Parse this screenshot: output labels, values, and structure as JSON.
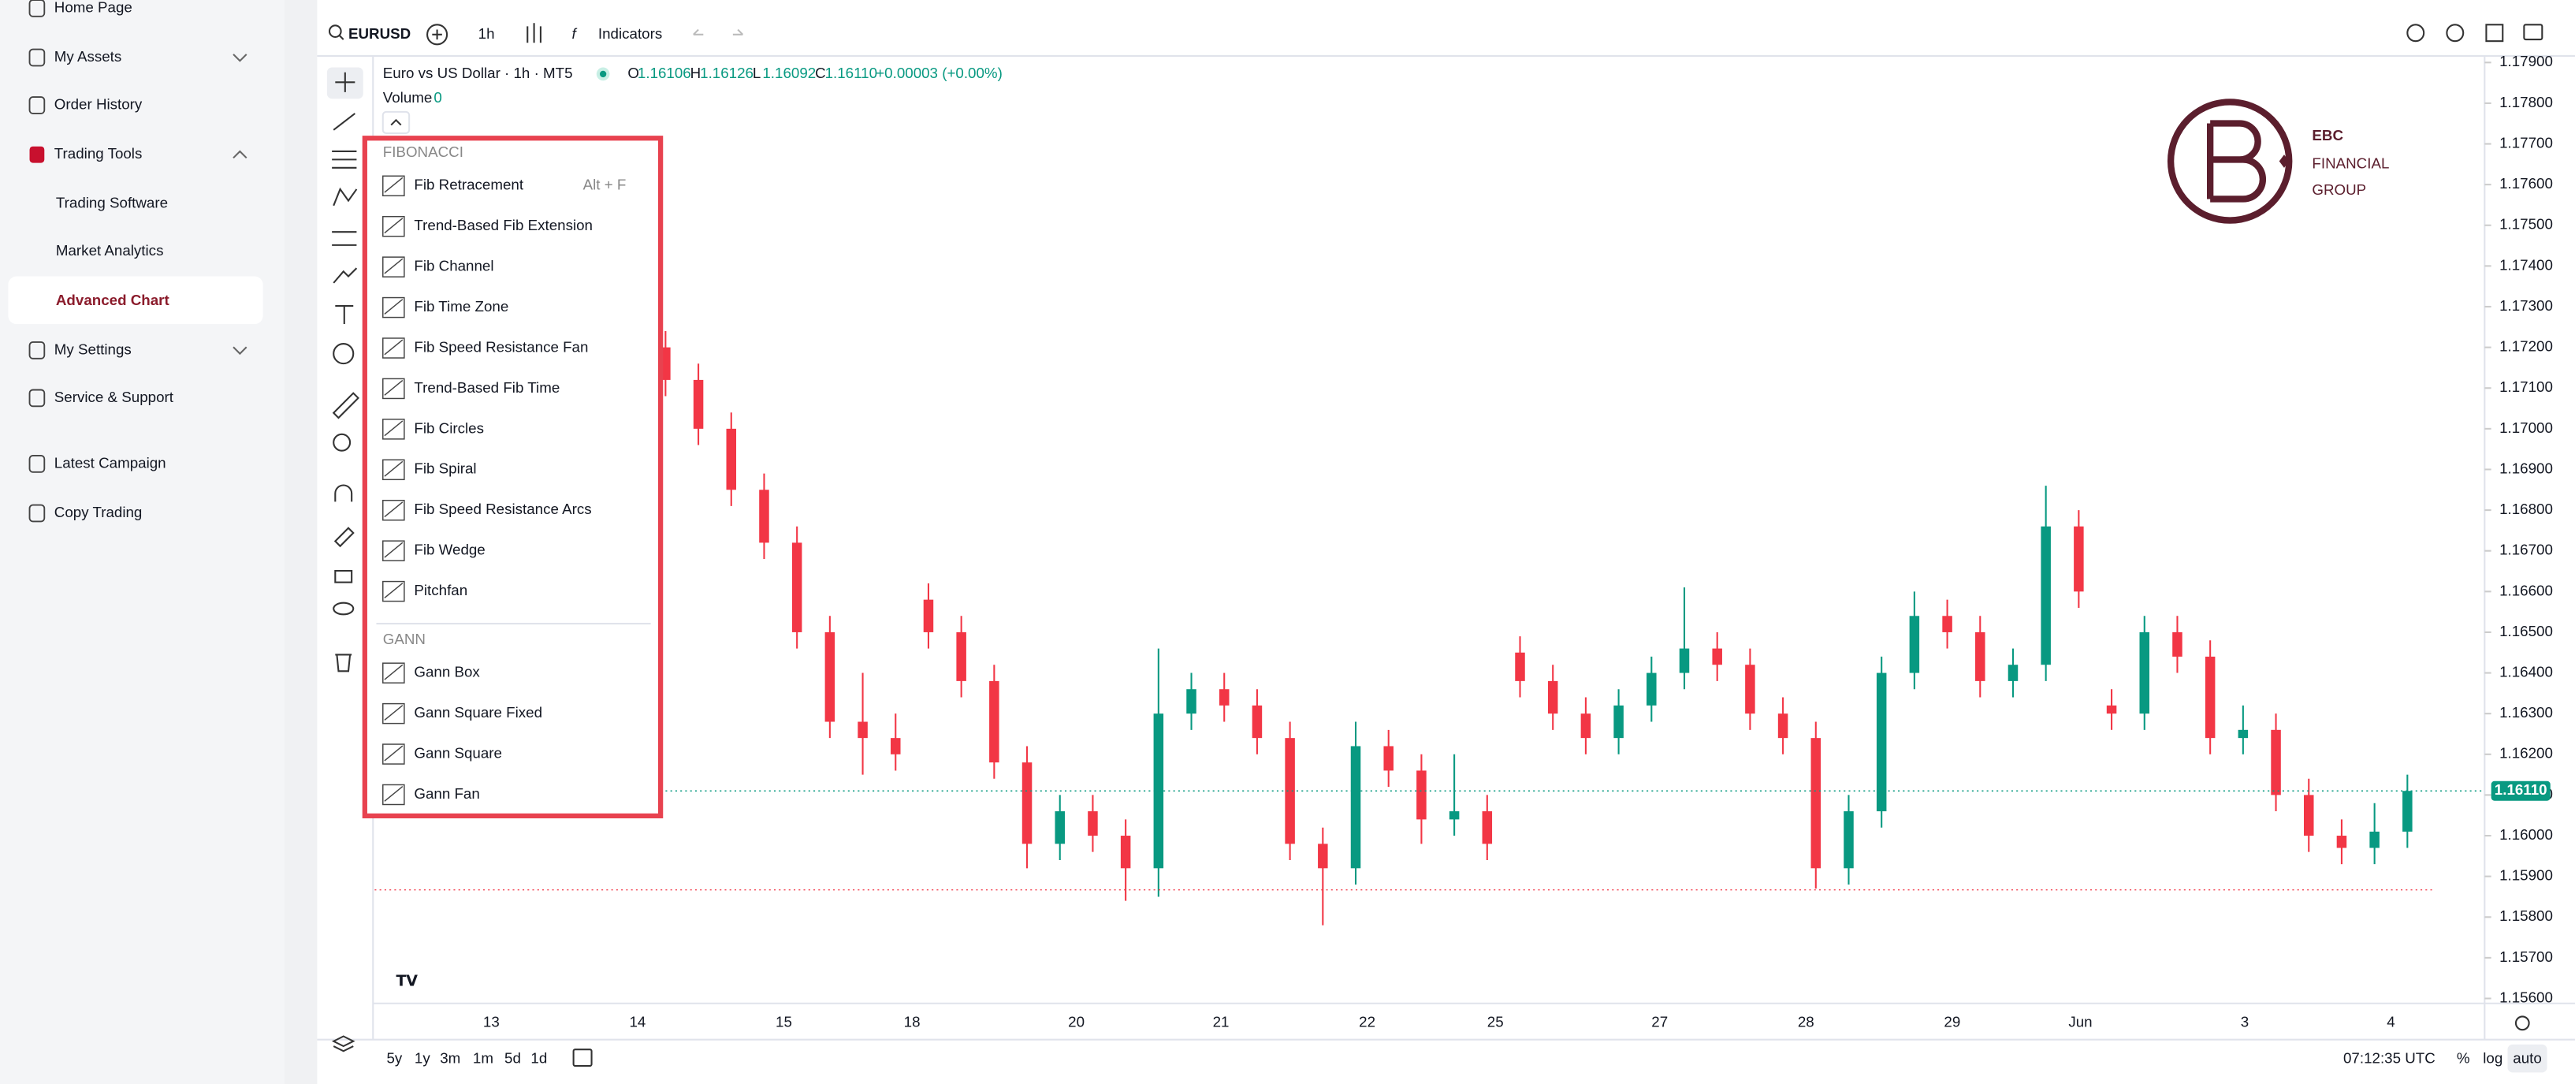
{
  "sidebar": {
    "items": [
      "Home Page",
      "My Assets",
      "Order History",
      "Trading Tools",
      "Trading Software",
      "Market Analytics",
      "Advanced Chart",
      "My Settings",
      "Service & Support",
      "Latest Campaign",
      "Copy Trading"
    ]
  },
  "toolbar": {
    "symbol": "EURUSD",
    "interval": "1h",
    "indicators": "Indicators"
  },
  "legend": {
    "title": "Euro vs US Dollar · 1h · MT5",
    "ohlc": [
      {
        "key": "O",
        "value": "1.16106"
      },
      {
        "key": "H",
        "value": "1.16126"
      },
      {
        "key": "L",
        "value": "1.16092"
      },
      {
        "key": "C",
        "value": "1.16110"
      }
    ],
    "change": "+0.00003 (+0.00%)",
    "volume_label": "Volume",
    "volume_value": "0"
  },
  "tools_menu": {
    "sections": [
      {
        "title": "FIBONACCI",
        "items": [
          {
            "label": "Fib Retracement",
            "shortcut": "Alt + F"
          },
          {
            "label": "Trend-Based Fib Extension"
          },
          {
            "label": "Fib Channel"
          },
          {
            "label": "Fib Time Zone"
          },
          {
            "label": "Fib Speed Resistance Fan"
          },
          {
            "label": "Trend-Based Fib Time"
          },
          {
            "label": "Fib Circles"
          },
          {
            "label": "Fib Spiral"
          },
          {
            "label": "Fib Speed Resistance Arcs"
          },
          {
            "label": "Fib Wedge"
          },
          {
            "label": "Pitchfan"
          }
        ]
      },
      {
        "title": "GANN",
        "items": [
          {
            "label": "Gann Box"
          },
          {
            "label": "Gann Square Fixed"
          },
          {
            "label": "Gann Square"
          },
          {
            "label": "Gann Fan"
          }
        ]
      }
    ]
  },
  "logo": {
    "lines": [
      "EBC",
      "FINANCIAL",
      "GROUP"
    ]
  },
  "chart_data": {
    "type": "candlestick",
    "colors": {
      "up": "#089981",
      "down": "#f23645"
    },
    "candles": [
      [
        1.172,
        1.1724,
        1.1708,
        1.1712
      ],
      [
        1.1712,
        1.1716,
        1.1696,
        1.17
      ],
      [
        1.17,
        1.1704,
        1.1681,
        1.1685
      ],
      [
        1.1685,
        1.1689,
        1.1668,
        1.1672
      ],
      [
        1.1672,
        1.1676,
        1.1646,
        1.165
      ],
      [
        1.165,
        1.1654,
        1.1624,
        1.1628
      ],
      [
        1.1628,
        1.164,
        1.1615,
        1.1624
      ],
      [
        1.1624,
        1.163,
        1.1616,
        1.162
      ],
      [
        1.1658,
        1.1662,
        1.1646,
        1.165
      ],
      [
        1.165,
        1.1654,
        1.1634,
        1.1638
      ],
      [
        1.1638,
        1.1642,
        1.1614,
        1.1618
      ],
      [
        1.1618,
        1.1622,
        1.1592,
        1.1598
      ],
      [
        1.1598,
        1.161,
        1.1594,
        1.1606
      ],
      [
        1.1606,
        1.161,
        1.1596,
        1.16
      ],
      [
        1.16,
        1.1604,
        1.1584,
        1.1592
      ],
      [
        1.1592,
        1.1646,
        1.1585,
        1.163
      ],
      [
        1.163,
        1.164,
        1.1626,
        1.1636
      ],
      [
        1.1636,
        1.164,
        1.1628,
        1.1632
      ],
      [
        1.1632,
        1.1636,
        1.162,
        1.1624
      ],
      [
        1.1624,
        1.1628,
        1.1594,
        1.1598
      ],
      [
        1.1598,
        1.1602,
        1.1578,
        1.1592
      ],
      [
        1.1592,
        1.1628,
        1.1588,
        1.1622
      ],
      [
        1.1622,
        1.1626,
        1.1612,
        1.1616
      ],
      [
        1.1616,
        1.162,
        1.1598,
        1.1604
      ],
      [
        1.1604,
        1.162,
        1.16,
        1.1606
      ],
      [
        1.1606,
        1.161,
        1.1594,
        1.1598
      ],
      [
        1.1645,
        1.1649,
        1.1634,
        1.1638
      ],
      [
        1.1638,
        1.1642,
        1.1626,
        1.163
      ],
      [
        1.163,
        1.1634,
        1.162,
        1.1624
      ],
      [
        1.1624,
        1.1636,
        1.162,
        1.1632
      ],
      [
        1.1632,
        1.1644,
        1.1628,
        1.164
      ],
      [
        1.164,
        1.1661,
        1.1636,
        1.1646
      ],
      [
        1.1646,
        1.165,
        1.1638,
        1.1642
      ],
      [
        1.1642,
        1.1646,
        1.1626,
        1.163
      ],
      [
        1.163,
        1.1634,
        1.162,
        1.1624
      ],
      [
        1.1624,
        1.1628,
        1.1587,
        1.1592
      ],
      [
        1.1592,
        1.161,
        1.1588,
        1.1606
      ],
      [
        1.1606,
        1.1644,
        1.1602,
        1.164
      ],
      [
        1.164,
        1.166,
        1.1636,
        1.1654
      ],
      [
        1.1654,
        1.1658,
        1.1646,
        1.165
      ],
      [
        1.165,
        1.1654,
        1.1634,
        1.1638
      ],
      [
        1.1638,
        1.1646,
        1.1634,
        1.1642
      ],
      [
        1.1642,
        1.1686,
        1.1638,
        1.1676
      ],
      [
        1.1676,
        1.168,
        1.1656,
        1.166
      ],
      [
        1.1632,
        1.1636,
        1.1626,
        1.163
      ],
      [
        1.163,
        1.1654,
        1.1626,
        1.165
      ],
      [
        1.165,
        1.1654,
        1.164,
        1.1644
      ],
      [
        1.1644,
        1.1648,
        1.162,
        1.1624
      ],
      [
        1.1624,
        1.1632,
        1.162,
        1.1626
      ],
      [
        1.1626,
        1.163,
        1.1606,
        1.161
      ],
      [
        1.161,
        1.1614,
        1.1596,
        1.16
      ],
      [
        1.16,
        1.1604,
        1.1593,
        1.1597
      ],
      [
        1.1597,
        1.1608,
        1.1593,
        1.1601
      ],
      [
        1.1601,
        1.1615,
        1.1597,
        1.1611
      ]
    ],
    "x_labels": [
      "13",
      "14",
      "15",
      "18",
      "20",
      "21",
      "22",
      "25",
      "27",
      "28",
      "29",
      "Jun",
      "3",
      "4"
    ],
    "ylim": [
      1.156,
      1.179
    ],
    "yticks": [
      {
        "value": 1.156,
        "label": "1.15600"
      },
      {
        "value": 1.157,
        "label": "1.15700"
      },
      {
        "value": 1.158,
        "label": "1.15800"
      },
      {
        "value": 1.159,
        "label": "1.15900"
      },
      {
        "value": 1.16,
        "label": "1.16000"
      },
      {
        "value": 1.161,
        "label": "1.16100"
      },
      {
        "value": 1.162,
        "label": "1.16200"
      },
      {
        "value": 1.163,
        "label": "1.16300"
      },
      {
        "value": 1.164,
        "label": "1.16400"
      },
      {
        "value": 1.165,
        "label": "1.16500"
      },
      {
        "value": 1.166,
        "label": "1.16600"
      },
      {
        "value": 1.167,
        "label": "1.16700"
      },
      {
        "value": 1.168,
        "label": "1.16800"
      },
      {
        "value": 1.169,
        "label": "1.16900"
      },
      {
        "value": 1.17,
        "label": "1.17000"
      },
      {
        "value": 1.171,
        "label": "1.17100"
      },
      {
        "value": 1.172,
        "label": "1.17200"
      },
      {
        "value": 1.173,
        "label": "1.17300"
      },
      {
        "value": 1.174,
        "label": "1.17400"
      },
      {
        "value": 1.175,
        "label": "1.17500"
      },
      {
        "value": 1.176,
        "label": "1.17600"
      },
      {
        "value": 1.177,
        "label": "1.17700"
      },
      {
        "value": 1.178,
        "label": "1.17800"
      },
      {
        "value": 1.179,
        "label": "1.17900"
      }
    ],
    "last_price": {
      "value": 1.1611,
      "label": "1.16110"
    }
  },
  "bottom_bar": {
    "ranges": [
      "5y",
      "1y",
      "3m",
      "1m",
      "5d",
      "1d"
    ],
    "time": "07:12:35 UTC",
    "scale_options": [
      "%",
      "log",
      "auto"
    ]
  }
}
